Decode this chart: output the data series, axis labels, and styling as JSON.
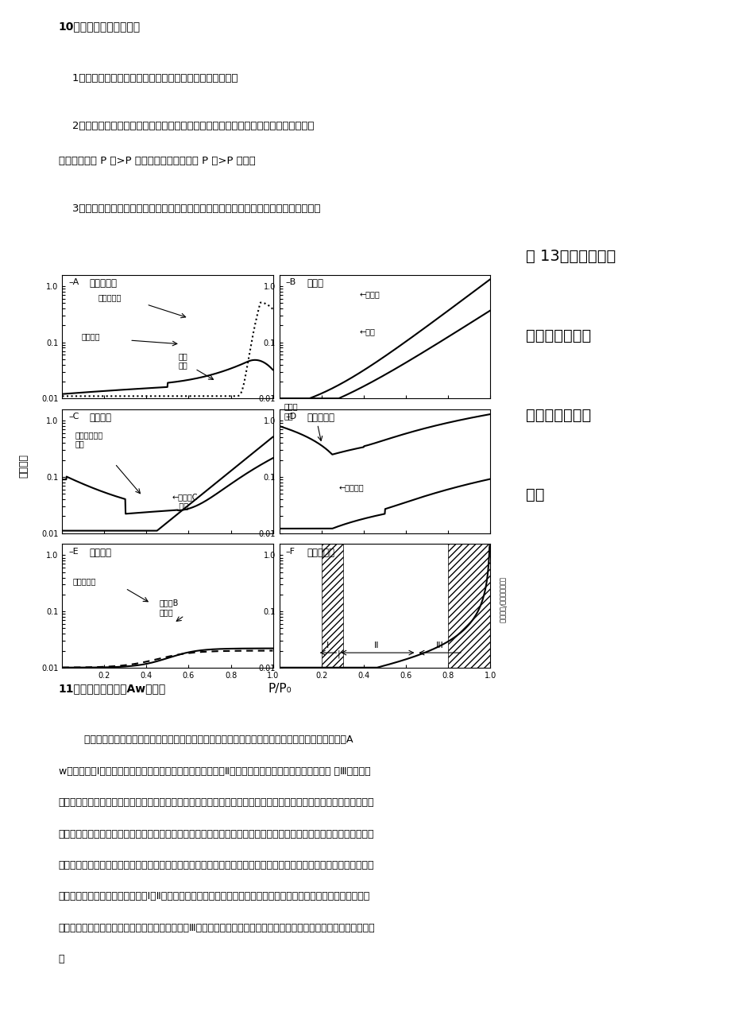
{
  "title_top": "10、引起滞后现象的原因",
  "para1": "    1、解吸过程中一些吸水与非水溶液成分作用而无法释放。",
  "para2": "    2、样品中不规则形状产生的毛细管现象的部位，欲填满或抽空水分需要不同的蒸汽压",
  "para2b": "（要抽出需要 P 内>P 外，要填满即吸着时需 P 外>P 内）。",
  "para3": "    3、解吸时，因组织改变，无法紧密结合水分，因此回吸相同水分含量时其水分活度较高",
  "fig_caption_line1": "图 13：水分活度、",
  "fig_caption_line2": "食品稳定性和吸",
  "fig_caption_line3": "附等温线之间的",
  "fig_caption_line4": "关系",
  "panel_labels": [
    "A",
    "B",
    "C",
    "D",
    "E",
    "F"
  ],
  "panel_titles": [
    "微生物生长",
    "酶水解",
    "氧化反应",
    "美拉德反应",
    "其他反应",
    "吸附等温线"
  ],
  "xlabel": "P/P₀",
  "ylabel": "相对速度",
  "title_bottom_bold": "11、脂类氧化反应与Aw的关系",
  "bottom_para1": "        影响脂肪品质的化学反应主要为酸败，而酸败过程的化学本质是空气中氧的自动化。脂类氧化反应与Aw的关系：在Ⅰ区中，氧化反应的速度随水分的增加而降低；在Ⅱ区中，反应的速度随水分的增加而加快 在Ⅲ区中，反应的速度随水分的增加呈下降趋势。其原因是脂类氧化反应的本质是水与脂肪自动氧化中形成的氢过氧化合物通过氢键结合，降低了氢过氧化合物分解的活性，从而降低了脂肪的氧化反应的速度。从没有水开始，随着水量的增加，保护作用增强，因此氧化过程有一个降低的过程。除了水对氢过氧化物的保护作用外，水与金属的结合还可使金属离子对脂肪氧化反应的催化作用降低。当含水量超过Ⅰ、Ⅱ区交界时，较大量的通过溶解作用可以有效的增加氧的含量，还可使脂肪分子通过溶胀而更加暴露，氧化速度加快。当含水量达到Ⅲ区时，大量的水降低了反应物和催化剂的浓度，氧化速度又有所降低。"
}
